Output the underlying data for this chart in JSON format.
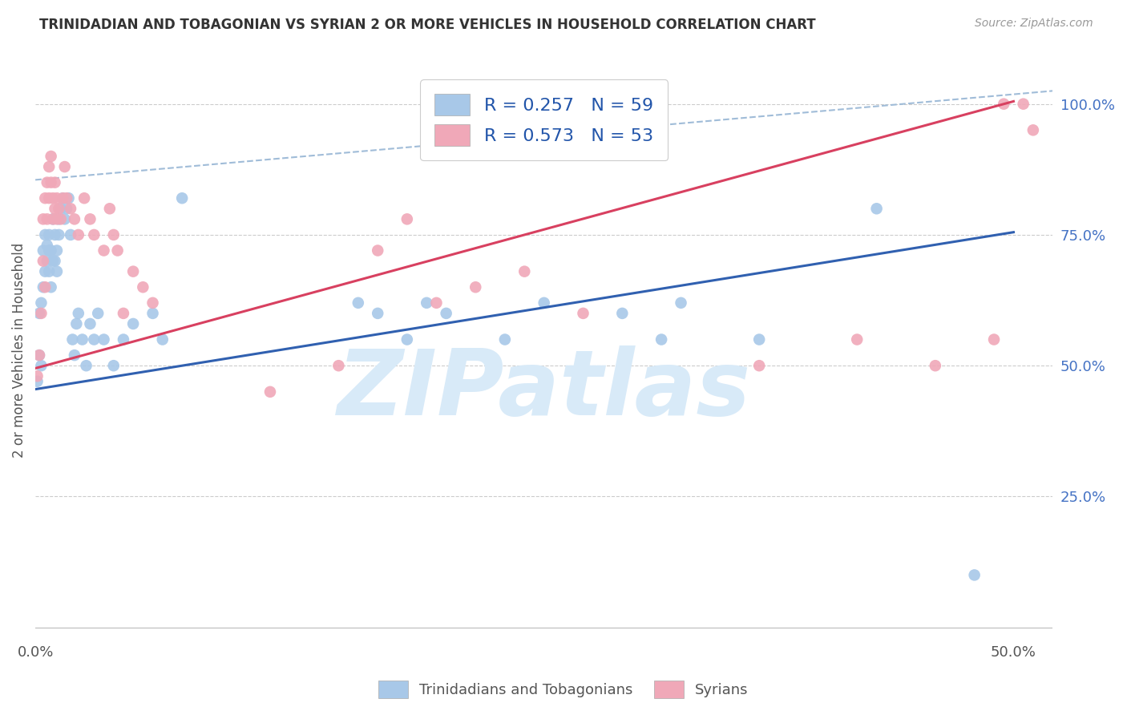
{
  "title": "TRINIDADIAN AND TOBAGONIAN VS SYRIAN 2 OR MORE VEHICLES IN HOUSEHOLD CORRELATION CHART",
  "source": "Source: ZipAtlas.com",
  "ylabel": "2 or more Vehicles in Household",
  "xlim": [
    0.0,
    0.52
  ],
  "ylim": [
    -0.02,
    1.08
  ],
  "xticks": [
    0.0,
    0.1,
    0.2,
    0.3,
    0.4,
    0.5
  ],
  "xticklabels": [
    "0.0%",
    "",
    "",
    "",
    "",
    "50.0%"
  ],
  "yticks_right": [
    0.25,
    0.5,
    0.75,
    1.0
  ],
  "yticklabels_right": [
    "25.0%",
    "50.0%",
    "75.0%",
    "100.0%"
  ],
  "legend_label_blue": "R = 0.257   N = 59",
  "legend_label_pink": "R = 0.573   N = 53",
  "blue_dot_color": "#a8c8e8",
  "pink_dot_color": "#f0a8b8",
  "blue_line_color": "#3060b0",
  "pink_line_color": "#d84060",
  "dash_line_color": "#a0bcd8",
  "blue_line_x0": 0.0,
  "blue_line_y0": 0.455,
  "blue_line_x1": 0.5,
  "blue_line_y1": 0.755,
  "pink_line_x0": 0.0,
  "pink_line_y0": 0.495,
  "pink_line_x1": 0.5,
  "pink_line_y1": 1.005,
  "dash_line_x0": 0.0,
  "dash_line_y0": 0.855,
  "dash_line_x1": 0.52,
  "dash_line_y1": 1.025,
  "watermark_text": "ZIPatlas",
  "watermark_color": "#d8eaf8",
  "grid_color": "#cccccc",
  "bg_color": "#ffffff",
  "trinidadian_x": [
    0.001,
    0.002,
    0.002,
    0.003,
    0.003,
    0.004,
    0.004,
    0.005,
    0.005,
    0.006,
    0.006,
    0.007,
    0.007,
    0.007,
    0.008,
    0.008,
    0.009,
    0.009,
    0.01,
    0.01,
    0.011,
    0.011,
    0.012,
    0.012,
    0.013,
    0.014,
    0.015,
    0.016,
    0.017,
    0.018,
    0.019,
    0.02,
    0.021,
    0.022,
    0.024,
    0.026,
    0.028,
    0.03,
    0.032,
    0.035,
    0.04,
    0.045,
    0.05,
    0.06,
    0.065,
    0.075,
    0.165,
    0.175,
    0.19,
    0.2,
    0.21,
    0.24,
    0.26,
    0.3,
    0.32,
    0.33,
    0.37,
    0.43,
    0.48
  ],
  "trinidadian_y": [
    0.47,
    0.6,
    0.52,
    0.62,
    0.5,
    0.65,
    0.72,
    0.68,
    0.75,
    0.73,
    0.7,
    0.72,
    0.68,
    0.75,
    0.72,
    0.65,
    0.7,
    0.78,
    0.7,
    0.75,
    0.68,
    0.72,
    0.75,
    0.78,
    0.8,
    0.82,
    0.78,
    0.8,
    0.82,
    0.75,
    0.55,
    0.52,
    0.58,
    0.6,
    0.55,
    0.5,
    0.58,
    0.55,
    0.6,
    0.55,
    0.5,
    0.55,
    0.58,
    0.6,
    0.55,
    0.82,
    0.62,
    0.6,
    0.55,
    0.62,
    0.6,
    0.55,
    0.62,
    0.6,
    0.55,
    0.62,
    0.55,
    0.8,
    0.1
  ],
  "syrian_x": [
    0.001,
    0.002,
    0.003,
    0.004,
    0.004,
    0.005,
    0.005,
    0.006,
    0.006,
    0.007,
    0.007,
    0.008,
    0.008,
    0.009,
    0.009,
    0.01,
    0.01,
    0.011,
    0.011,
    0.012,
    0.013,
    0.014,
    0.015,
    0.016,
    0.018,
    0.02,
    0.022,
    0.025,
    0.028,
    0.03,
    0.035,
    0.038,
    0.04,
    0.042,
    0.045,
    0.05,
    0.055,
    0.06,
    0.12,
    0.155,
    0.175,
    0.19,
    0.205,
    0.225,
    0.25,
    0.28,
    0.37,
    0.42,
    0.46,
    0.49,
    0.495,
    0.505,
    0.51
  ],
  "syrian_y": [
    0.48,
    0.52,
    0.6,
    0.7,
    0.78,
    0.82,
    0.65,
    0.85,
    0.78,
    0.82,
    0.88,
    0.85,
    0.9,
    0.82,
    0.78,
    0.85,
    0.8,
    0.82,
    0.78,
    0.8,
    0.78,
    0.82,
    0.88,
    0.82,
    0.8,
    0.78,
    0.75,
    0.82,
    0.78,
    0.75,
    0.72,
    0.8,
    0.75,
    0.72,
    0.6,
    0.68,
    0.65,
    0.62,
    0.45,
    0.5,
    0.72,
    0.78,
    0.62,
    0.65,
    0.68,
    0.6,
    0.5,
    0.55,
    0.5,
    0.55,
    1.0,
    1.0,
    0.95
  ]
}
